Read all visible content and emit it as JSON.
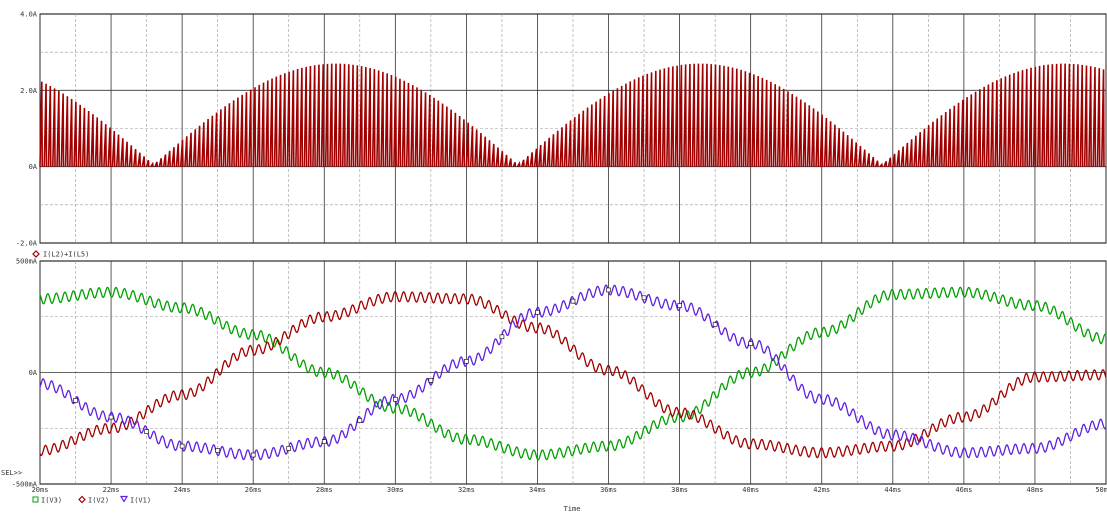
{
  "chart_data": [
    {
      "type": "line",
      "panel": "top",
      "x_range_ms": [
        20,
        50
      ],
      "ylim": [
        -2.0,
        4.0
      ],
      "ytick_labels": [
        "4.0A",
        "2.0A",
        "0A",
        "-2.0A"
      ],
      "ytick_values": [
        4.0,
        2.0,
        0,
        -2.0
      ],
      "grid": true,
      "series": [
        {
          "name": "I(L2)+I(L5)",
          "color": "#a00000",
          "marker": "diamond",
          "style": "switching pulses (~250 per 30 ms) between 0 A and a rectified-sine envelope",
          "pulse_envelope_peak_A": 2.7,
          "pulse_envelope_peak_x_ms": [
            28.7,
            38.0,
            48.4
          ],
          "pulse_envelope_min_A": 0.05,
          "pulse_envelope_min_x_ms": [
            23.2,
            33.5,
            43.7
          ]
        }
      ]
    },
    {
      "type": "line",
      "panel": "bottom",
      "x": [
        20,
        22,
        24,
        26,
        28,
        30,
        32,
        34,
        36,
        38,
        40,
        42,
        44,
        46,
        48,
        50
      ],
      "xtick_labels": [
        "20ms",
        "22ms",
        "24ms",
        "26ms",
        "28ms",
        "30ms",
        "32ms",
        "34ms",
        "36ms",
        "38ms",
        "40ms",
        "42ms",
        "44ms",
        "46ms",
        "48ms",
        "50m"
      ],
      "xlabel": "Time",
      "ylim": [
        -500,
        500
      ],
      "ytick_labels": [
        "500mA",
        "0A",
        "-500mA"
      ],
      "ytick_values": [
        500,
        0,
        -500
      ],
      "sel_label": "SEL>>",
      "grid": true,
      "series": [
        {
          "name": "I(V3)",
          "color": "#00a000",
          "marker": "square",
          "marker_label": "□",
          "values": [
            330,
            360,
            290,
            170,
            0,
            -160,
            -300,
            -370,
            -330,
            -200,
            0,
            180,
            350,
            360,
            300,
            150
          ]
        },
        {
          "name": "I(V2)",
          "color": "#a00000",
          "marker": "diamond",
          "marker_label": "◆",
          "values": [
            -350,
            -250,
            -100,
            100,
            250,
            340,
            330,
            200,
            10,
            -180,
            -320,
            -360,
            -330,
            -200,
            -20,
            -10
          ]
        },
        {
          "name": "I(V1)",
          "color": "#6020e0",
          "marker": "down-triangle",
          "marker_label": "▽",
          "values": [
            -50,
            -200,
            -330,
            -370,
            -310,
            -120,
            50,
            270,
            370,
            300,
            130,
            -120,
            -280,
            -360,
            -340,
            -230
          ]
        }
      ]
    }
  ]
}
